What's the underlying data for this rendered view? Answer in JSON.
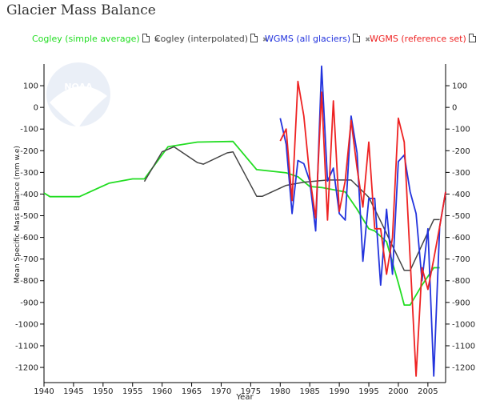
{
  "header": {
    "title": "Glacier Mass Balance"
  },
  "legend": [
    {
      "label": "Cogley (simple average)",
      "color": "#22dd22"
    },
    {
      "label": "Cogley (interpolated)",
      "color": "#444444"
    },
    {
      "label": "WGMS (all glaciers)",
      "color": "#2233dd"
    },
    {
      "label": "WGMS (reference set)",
      "color": "#ee2222"
    }
  ],
  "chart_data": {
    "type": "line",
    "title": "Glacier Mass Balance",
    "xlabel": "Year",
    "ylabel": "Mean Specific Mass Balance (mm w.e)",
    "xlim": [
      1940,
      2008
    ],
    "ylim": [
      -1270,
      200
    ],
    "xticks": [
      1940,
      1945,
      1950,
      1955,
      1960,
      1965,
      1970,
      1975,
      1980,
      1985,
      1990,
      1995,
      2000,
      2005
    ],
    "yticks": [
      100,
      0,
      -100,
      -200,
      -300,
      -400,
      -500,
      -600,
      -700,
      -800,
      -900,
      -1000,
      -1100,
      -1200
    ],
    "grid": false,
    "legend_position": "top",
    "series": [
      {
        "name": "Cogley (simple average)",
        "color": "#22dd22",
        "x": [
          1940,
          1941,
          1946,
          1951,
          1955,
          1957,
          1961,
          1966,
          1972,
          1976,
          1981,
          1983,
          1985,
          1987,
          1989,
          1991,
          1993,
          1995,
          1996,
          1998,
          2000,
          2001,
          2002,
          2004,
          2006,
          2007
        ],
        "y": [
          -395,
          -412,
          -412,
          -350,
          -330,
          -330,
          -182,
          -160,
          -157,
          -287,
          -302,
          -320,
          -365,
          -370,
          -380,
          -390,
          -470,
          -560,
          -570,
          -620,
          -810,
          -912,
          -912,
          -820,
          -740,
          -740
        ]
      },
      {
        "name": "Cogley (interpolated)",
        "color": "#444444",
        "x": [
          1957,
          1960,
          1962,
          1966,
          1967,
          1971,
          1972,
          1976,
          1977,
          1981,
          1984,
          1988,
          1992,
          1995,
          1997,
          2001,
          2002,
          2006,
          2007
        ],
        "y": [
          -342,
          -205,
          -182,
          -255,
          -262,
          -210,
          -205,
          -410,
          -410,
          -360,
          -345,
          -335,
          -335,
          -415,
          -525,
          -752,
          -752,
          -518,
          -518
        ]
      },
      {
        "name": "WGMS (all glaciers)",
        "color": "#2233dd",
        "x": [
          1980,
          1981,
          1982,
          1983,
          1984,
          1985,
          1986,
          1987,
          1988,
          1989,
          1990,
          1991,
          1992,
          1993,
          1994,
          1995,
          1996,
          1997,
          1998,
          1999,
          2000,
          2001,
          2002,
          2003,
          2004,
          2005,
          2006,
          2007,
          2008
        ],
        "y": [
          -50,
          -170,
          -490,
          -245,
          -260,
          -340,
          -570,
          190,
          -340,
          -280,
          -490,
          -520,
          -40,
          -210,
          -710,
          -420,
          -420,
          -820,
          -470,
          -770,
          -250,
          -220,
          -390,
          -490,
          -800,
          -560,
          -1240,
          -550,
          -390
        ]
      },
      {
        "name": "WGMS (reference set)",
        "color": "#ee2222",
        "x": [
          1980,
          1981,
          1982,
          1983,
          1984,
          1985,
          1986,
          1987,
          1988,
          1989,
          1990,
          1991,
          1992,
          1993,
          1994,
          1995,
          1996,
          1997,
          1998,
          1999,
          2000,
          2001,
          2002,
          2003,
          2004,
          2005,
          2006,
          2007,
          2008
        ],
        "y": [
          -155,
          -100,
          -430,
          120,
          -40,
          -320,
          -510,
          70,
          -520,
          30,
          -480,
          -340,
          -60,
          -280,
          -460,
          -160,
          -560,
          -560,
          -770,
          -600,
          -50,
          -160,
          -700,
          -1240,
          -740,
          -840,
          -700,
          -550,
          -390
        ]
      }
    ]
  }
}
